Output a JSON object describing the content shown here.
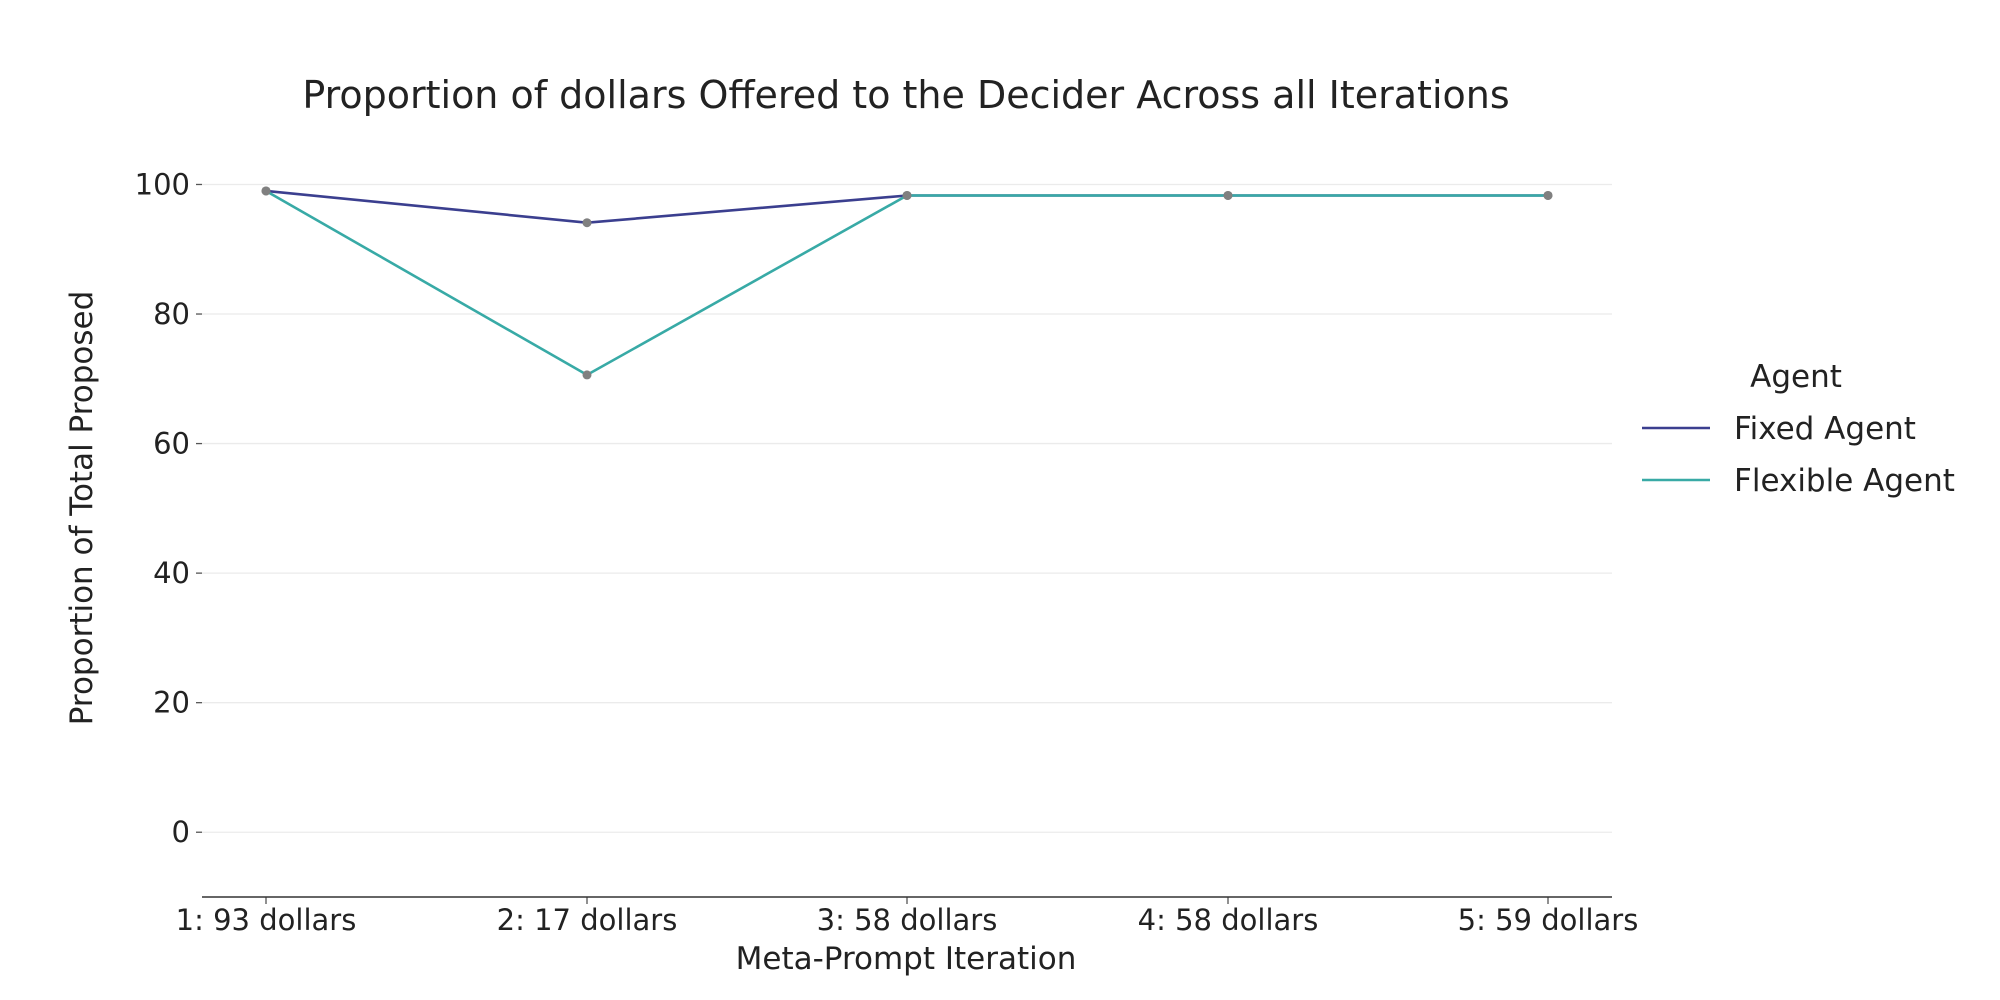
{
  "chart_data": {
    "type": "line",
    "title": "Proportion of dollars Offered to the Decider Across all Iterations",
    "xlabel": "Meta-Prompt Iteration",
    "ylabel": "Proportion of Total Proposed",
    "categories": [
      "1: 93 dollars",
      "2: 17 dollars",
      "3: 58 dollars",
      "4: 58 dollars",
      "5: 59 dollars"
    ],
    "series": [
      {
        "name": "Fixed Agent",
        "color": "#3b3f8f",
        "values": [
          99,
          94.1,
          98.3,
          98.3,
          98.3
        ]
      },
      {
        "name": "Flexible Agent",
        "color": "#38aaa6",
        "values": [
          99,
          70.6,
          98.3,
          98.3,
          98.3
        ]
      }
    ],
    "point_color": "#808080",
    "ylim": [
      -10,
      101
    ],
    "yticks": [
      0,
      20,
      40,
      60,
      80,
      100
    ],
    "grid": true,
    "legend": {
      "title": "Agent",
      "position": "right"
    }
  }
}
